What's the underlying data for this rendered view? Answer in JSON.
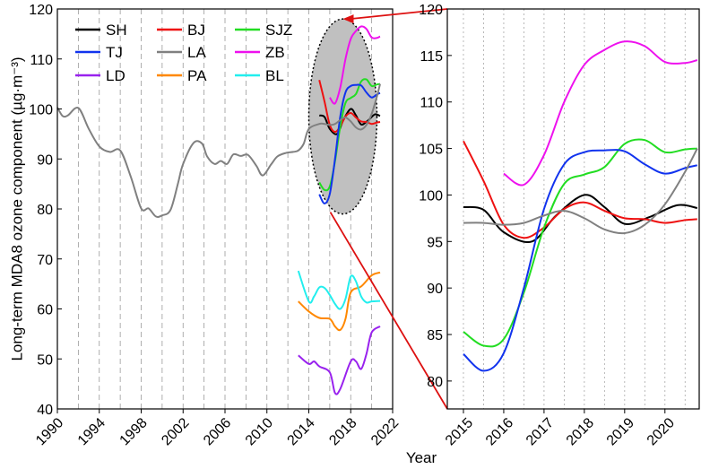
{
  "chart_data": [
    {
      "type": "line",
      "panel": "left",
      "ylabel": "Long-term MDA8 ozone component (µg·m⁻³)",
      "xlim": [
        1990,
        2022
      ],
      "ylim": [
        40,
        120
      ],
      "xticks": [
        1990,
        1994,
        1998,
        2002,
        2006,
        2010,
        2014,
        2018,
        2022
      ],
      "xtick_labels": [
        "1990",
        "1994",
        "1998",
        "2002",
        "2006",
        "2010",
        "2014",
        "2018",
        "2022"
      ],
      "yticks": [
        40,
        50,
        60,
        70,
        80,
        90,
        100,
        110,
        120
      ],
      "ytick_labels": [
        "40",
        "50",
        "60",
        "70",
        "80",
        "90",
        "100",
        "110",
        "120"
      ],
      "gridlines": "vertical dashed every 2 years",
      "legend": {
        "placement": "top-left",
        "columns": 3,
        "entries": [
          "SH",
          "BJ",
          "SJZ",
          "TJ",
          "LA",
          "ZB",
          "LD",
          "PA",
          "BL"
        ]
      },
      "highlight": {
        "shape": "ellipse",
        "fill": "gray",
        "border": "dotted",
        "covers_years": [
          2014,
          2020.5
        ],
        "covers_values": [
          79,
          118
        ]
      },
      "series": [
        {
          "name": "SH",
          "color": "#000000",
          "x": [
            2015.0,
            2015.5,
            2016.0,
            2016.7,
            2017.3,
            2018.0,
            2018.5,
            2019.0,
            2019.6,
            2020.3,
            2020.8
          ],
          "values": [
            98.7,
            98.4,
            96.0,
            95.0,
            97.8,
            100.0,
            98.7,
            96.9,
            97.6,
            98.9,
            98.6
          ]
        },
        {
          "name": "BJ",
          "color": "#ee1111",
          "x": [
            2015.0,
            2015.5,
            2016.0,
            2016.5,
            2017.0,
            2017.5,
            2018.0,
            2018.5,
            2019.0,
            2019.5,
            2020.0,
            2020.5,
            2020.8
          ],
          "values": [
            105.8,
            101.5,
            96.8,
            95.4,
            96.5,
            98.5,
            99.2,
            98.3,
            97.5,
            97.4,
            97.0,
            97.3,
            97.4
          ]
        },
        {
          "name": "SJZ",
          "color": "#22dd22",
          "x": [
            2015.0,
            2015.5,
            2016.0,
            2016.5,
            2017.0,
            2017.5,
            2018.0,
            2018.5,
            2019.0,
            2019.5,
            2020.0,
            2020.5,
            2020.8
          ],
          "values": [
            85.3,
            83.8,
            84.5,
            89.5,
            96.5,
            101.2,
            102.2,
            103.0,
            105.5,
            105.9,
            104.6,
            104.9,
            105.0
          ]
        },
        {
          "name": "TJ",
          "color": "#1133ee",
          "x": [
            2015.0,
            2015.5,
            2016.0,
            2016.5,
            2017.0,
            2017.5,
            2018.0,
            2018.5,
            2019.0,
            2019.5,
            2020.0,
            2020.5,
            2020.8
          ],
          "values": [
            82.9,
            81.1,
            83.0,
            90.0,
            98.5,
            103.3,
            104.6,
            104.8,
            104.7,
            103.3,
            102.3,
            102.9,
            103.2
          ]
        },
        {
          "name": "LA",
          "color": "#808080",
          "x": [
            1990.0,
            1990.5,
            1991.0,
            1992.0,
            1993.0,
            1994.0,
            1995.0,
            1996.0,
            1997.0,
            1998.0,
            1998.7,
            1999.4,
            2000.0,
            2000.8,
            2001.5,
            2002.0,
            2003.0,
            2003.8,
            2004.3,
            2005.0,
            2005.6,
            2006.2,
            2006.8,
            2007.5,
            2008.2,
            2009.0,
            2009.6,
            2010.4,
            2011.0,
            2011.8,
            2012.5,
            2013.0,
            2013.5,
            2014.0,
            2015.0,
            2015.5,
            2016.0,
            2016.5,
            2017.0,
            2017.5,
            2018.0,
            2018.5,
            2019.0,
            2019.5,
            2020.0,
            2020.5,
            2020.8
          ],
          "values": [
            100.3,
            98.6,
            98.7,
            100.2,
            96.0,
            92.5,
            91.4,
            91.7,
            86.5,
            80.1,
            80.1,
            78.5,
            78.7,
            79.8,
            85.0,
            89.0,
            93.2,
            93.1,
            90.5,
            89.0,
            89.6,
            89.0,
            90.9,
            90.6,
            90.8,
            88.6,
            86.7,
            88.9,
            90.5,
            91.2,
            91.4,
            91.7,
            93.0,
            96.0,
            97.0,
            97.0,
            96.8,
            97.0,
            97.8,
            98.3,
            97.5,
            96.3,
            95.9,
            96.8,
            99.0,
            102.5,
            105.0
          ]
        },
        {
          "name": "ZB",
          "color": "#ee11ee",
          "x": [
            2016.0,
            2016.5,
            2017.0,
            2017.5,
            2018.0,
            2018.5,
            2019.0,
            2019.5,
            2020.0,
            2020.5,
            2020.8
          ],
          "values": [
            102.3,
            101.1,
            104.3,
            110.0,
            114.0,
            115.6,
            116.5,
            116.0,
            114.3,
            114.2,
            114.5
          ]
        },
        {
          "name": "LD",
          "color": "#9922ee",
          "x": [
            2013.0,
            2014.0,
            2014.5,
            2015.0,
            2016.0,
            2016.5,
            2017.0,
            2018.0,
            2018.5,
            2019.0,
            2019.5,
            2020.0,
            2020.8
          ],
          "values": [
            50.7,
            49.0,
            49.5,
            48.5,
            47.3,
            43.2,
            44.0,
            49.5,
            49.5,
            48.0,
            51.0,
            55.3,
            56.5
          ]
        },
        {
          "name": "PA",
          "color": "#ff8800",
          "x": [
            2013.0,
            2014.0,
            2015.0,
            2016.0,
            2016.5,
            2017.0,
            2017.5,
            2018.0,
            2019.0,
            2020.0,
            2020.8
          ],
          "values": [
            61.5,
            59.5,
            58.2,
            58.0,
            56.5,
            55.8,
            58.0,
            63.3,
            64.5,
            66.7,
            67.3
          ]
        },
        {
          "name": "BL",
          "color": "#22eeee",
          "x": [
            2013.0,
            2014.0,
            2014.5,
            2015.0,
            2015.5,
            2016.0,
            2016.5,
            2017.0,
            2017.5,
            2018.0,
            2018.5,
            2019.0,
            2019.5,
            2020.0,
            2020.8
          ],
          "values": [
            67.6,
            61.5,
            62.5,
            64.3,
            64.2,
            62.8,
            61.0,
            60.0,
            62.0,
            66.5,
            65.5,
            62.5,
            61.3,
            61.5,
            61.6
          ]
        }
      ]
    },
    {
      "type": "line",
      "panel": "right (zoomed)",
      "xlim": [
        2014.6,
        2020.85
      ],
      "ylim": [
        77,
        120
      ],
      "xticks": [
        2015,
        2016,
        2017,
        2018,
        2019,
        2020
      ],
      "xtick_labels": [
        "2015",
        "2016",
        "2017",
        "2018",
        "2019",
        "2020"
      ],
      "yticks": [
        80,
        85,
        90,
        95,
        100,
        105,
        110,
        115,
        120
      ],
      "ytick_labels": [
        "80",
        "85",
        "90",
        "95",
        "100",
        "105",
        "110",
        "115",
        "120"
      ],
      "gridlines": "vertical dotted every half year",
      "series_shown": [
        "SH",
        "BJ",
        "SJZ",
        "TJ",
        "LA",
        "ZB"
      ]
    }
  ],
  "figure": {
    "xlabel": "Year",
    "zoom_connector_color": "#dd1111"
  }
}
